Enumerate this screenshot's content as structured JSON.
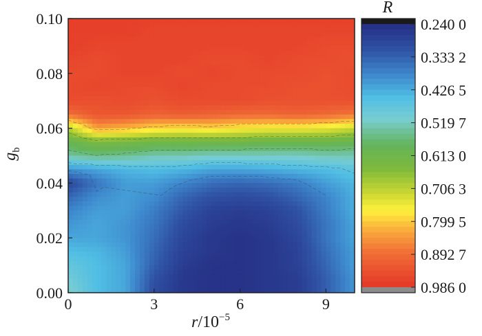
{
  "chart_data": {
    "type": "heatmap",
    "title": "",
    "xlabel": {
      "var": "r",
      "unit": "/10",
      "exp": "−5"
    },
    "ylabel": {
      "var": "g",
      "sub": "b"
    },
    "x_ticks": [
      "0",
      "3",
      "6",
      "9"
    ],
    "x_tick_values": [
      0,
      3,
      6,
      9
    ],
    "y_ticks": [
      "0.00",
      "0.02",
      "0.04",
      "0.06",
      "0.08",
      "0.10"
    ],
    "y_tick_values": [
      0.0,
      0.02,
      0.04,
      0.06,
      0.08,
      0.1
    ],
    "xlim": [
      0,
      10
    ],
    "ylim": [
      0,
      0.1
    ],
    "colorbar": {
      "label": "R",
      "ticks": [
        "0.240 0",
        "0.333 2",
        "0.426 5",
        "0.519 7",
        "0.613 0",
        "0.706 3",
        "0.799 5",
        "0.892 7",
        "0.986 0"
      ],
      "tick_values": [
        0.24,
        0.3332,
        0.4265,
        0.5197,
        0.613,
        0.7063,
        0.7995,
        0.8927,
        0.986
      ],
      "range": [
        0.24,
        0.986
      ],
      "over_color": "#1a1a1a",
      "under_color": "#8c8c8c"
    },
    "x": [
      0,
      1,
      2,
      3,
      4,
      5,
      6,
      7,
      8,
      9,
      10
    ],
    "y": [
      0.0,
      0.005,
      0.01,
      0.015,
      0.02,
      0.025,
      0.03,
      0.035,
      0.04,
      0.045,
      0.05,
      0.055,
      0.06,
      0.065,
      0.07,
      0.075,
      0.08,
      0.085,
      0.09,
      0.095,
      0.1
    ],
    "z": [
      [
        0.52,
        0.45,
        0.42,
        0.3,
        0.26,
        0.25,
        0.25,
        0.26,
        0.27,
        0.33,
        0.4
      ],
      [
        0.5,
        0.45,
        0.42,
        0.31,
        0.26,
        0.25,
        0.25,
        0.26,
        0.27,
        0.33,
        0.4
      ],
      [
        0.48,
        0.45,
        0.42,
        0.33,
        0.27,
        0.25,
        0.25,
        0.26,
        0.28,
        0.34,
        0.41
      ],
      [
        0.45,
        0.44,
        0.41,
        0.34,
        0.28,
        0.26,
        0.25,
        0.26,
        0.28,
        0.35,
        0.41
      ],
      [
        0.42,
        0.42,
        0.4,
        0.35,
        0.29,
        0.26,
        0.25,
        0.26,
        0.29,
        0.36,
        0.42
      ],
      [
        0.4,
        0.42,
        0.4,
        0.36,
        0.3,
        0.27,
        0.26,
        0.27,
        0.3,
        0.36,
        0.42
      ],
      [
        0.38,
        0.41,
        0.41,
        0.37,
        0.32,
        0.28,
        0.27,
        0.28,
        0.31,
        0.37,
        0.43
      ],
      [
        0.34,
        0.39,
        0.41,
        0.39,
        0.34,
        0.31,
        0.3,
        0.31,
        0.34,
        0.38,
        0.43
      ],
      [
        0.29,
        0.36,
        0.41,
        0.41,
        0.38,
        0.35,
        0.34,
        0.35,
        0.37,
        0.41,
        0.44
      ],
      [
        0.4,
        0.42,
        0.44,
        0.45,
        0.44,
        0.42,
        0.42,
        0.43,
        0.44,
        0.45,
        0.47
      ],
      [
        0.54,
        0.56,
        0.55,
        0.53,
        0.53,
        0.52,
        0.52,
        0.52,
        0.52,
        0.53,
        0.53
      ],
      [
        0.6,
        0.64,
        0.63,
        0.62,
        0.62,
        0.62,
        0.62,
        0.61,
        0.61,
        0.61,
        0.6
      ],
      [
        0.7,
        0.84,
        0.82,
        0.79,
        0.78,
        0.79,
        0.77,
        0.76,
        0.76,
        0.75,
        0.72
      ],
      [
        0.89,
        0.93,
        0.93,
        0.91,
        0.92,
        0.91,
        0.9,
        0.9,
        0.91,
        0.9,
        0.88
      ],
      [
        0.95,
        0.94,
        0.95,
        0.94,
        0.95,
        0.95,
        0.95,
        0.94,
        0.94,
        0.94,
        0.94
      ],
      [
        0.95,
        0.96,
        0.95,
        0.95,
        0.96,
        0.95,
        0.95,
        0.95,
        0.94,
        0.94,
        0.95
      ],
      [
        0.95,
        0.95,
        0.96,
        0.96,
        0.95,
        0.96,
        0.95,
        0.95,
        0.95,
        0.94,
        0.95
      ],
      [
        0.96,
        0.95,
        0.96,
        0.96,
        0.96,
        0.95,
        0.95,
        0.96,
        0.95,
        0.95,
        0.94
      ],
      [
        0.97,
        0.96,
        0.96,
        0.96,
        0.96,
        0.96,
        0.96,
        0.96,
        0.96,
        0.95,
        0.95
      ],
      [
        0.97,
        0.97,
        0.97,
        0.96,
        0.96,
        0.96,
        0.96,
        0.96,
        0.96,
        0.96,
        0.96
      ],
      [
        0.97,
        0.97,
        0.97,
        0.97,
        0.97,
        0.97,
        0.97,
        0.97,
        0.97,
        0.97,
        0.97
      ]
    ]
  }
}
